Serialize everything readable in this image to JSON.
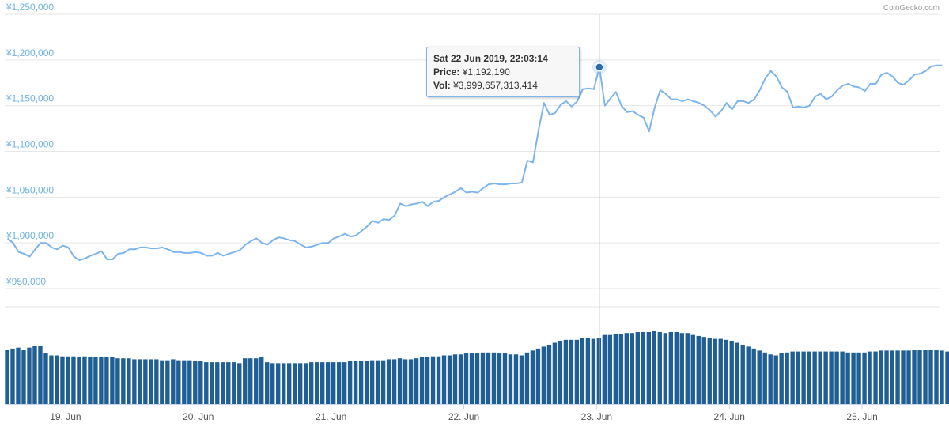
{
  "credit": "CoinGecko.com",
  "chart_data": {
    "type": "line",
    "xlabel": "",
    "ylabel": "",
    "currency": "¥",
    "ylim": [
      950000,
      1250000
    ],
    "y_ticks": [
      950000,
      1000000,
      1050000,
      1100000,
      1150000,
      1200000,
      1250000
    ],
    "y_tick_labels": [
      "¥950,000",
      "¥1,000,000",
      "¥1,050,000",
      "¥1,100,000",
      "¥1,150,000",
      "¥1,200,000",
      "¥1,250,000"
    ],
    "x_ticks": [
      "2019-06-19",
      "2019-06-20",
      "2019-06-21",
      "2019-06-22",
      "2019-06-23",
      "2019-06-24",
      "2019-06-25"
    ],
    "x_tick_labels": [
      "19. Jun",
      "20. Jun",
      "21. Jun",
      "22. Jun",
      "23. Jun",
      "24. Jun",
      "25. Jun"
    ],
    "x_range": [
      "2019-06-18T13:00",
      "2019-06-25T14:00"
    ],
    "interval_hours": 1,
    "colors": {
      "price_line": "#7cb5ec",
      "volume_bars": "#1f5f96",
      "grid": "#e6e6e6",
      "marker": "#2b6cb0",
      "crosshair": "#c0c0c0"
    },
    "grid": true,
    "legend": "none",
    "series": [
      {
        "name": "Price",
        "values": [
          1005000,
          1000000,
          990000,
          988000,
          985000,
          993000,
          1000000,
          1000000,
          995000,
          993000,
          997000,
          995000,
          985000,
          981000,
          983000,
          986000,
          988000,
          991000,
          982000,
          982000,
          988000,
          989000,
          993000,
          993000,
          995000,
          995000,
          994000,
          994000,
          995000,
          993000,
          990000,
          990000,
          989000,
          989000,
          990000,
          989000,
          986000,
          986000,
          989000,
          986000,
          988000,
          990000,
          992000,
          998000,
          1002000,
          1005000,
          1000000,
          998000,
          1003000,
          1006000,
          1005000,
          1003000,
          1002000,
          998000,
          995000,
          996000,
          998000,
          1000000,
          1000000,
          1005000,
          1007000,
          1010000,
          1007000,
          1008000,
          1013000,
          1018000,
          1024000,
          1022000,
          1026000,
          1025000,
          1030000,
          1043000,
          1040000,
          1042000,
          1043000,
          1045000,
          1040000,
          1045000,
          1046000,
          1050000,
          1053000,
          1056000,
          1060000,
          1055000,
          1056000,
          1055000,
          1060000,
          1064000,
          1065000,
          1064000,
          1064000,
          1065000,
          1065000,
          1066000,
          1090000,
          1088000,
          1123000,
          1153000,
          1140000,
          1142000,
          1151000,
          1155000,
          1149000,
          1155000,
          1168000,
          1169000,
          1168000,
          1192190,
          1150000,
          1158000,
          1165000,
          1150000,
          1143000,
          1144000,
          1140000,
          1137000,
          1122000,
          1148000,
          1167000,
          1163000,
          1157000,
          1157000,
          1155000,
          1157000,
          1155000,
          1153000,
          1150000,
          1145000,
          1138000,
          1144000,
          1153000,
          1146000,
          1155000,
          1155000,
          1153000,
          1157000,
          1167000,
          1180000,
          1188000,
          1182000,
          1170000,
          1165000,
          1148000,
          1149000,
          1148000,
          1150000,
          1160000,
          1163000,
          1157000,
          1160000,
          1167000,
          1172000,
          1174000,
          1171000,
          1170000,
          1166000,
          1174000,
          1174000,
          1184000,
          1186000,
          1182000,
          1175000,
          1173000,
          1178000,
          1184000,
          1185000,
          1188000,
          1193000,
          1194000,
          1194000
        ]
      },
      {
        "name": "Vol",
        "unit": "relative volume (0–100)",
        "values": [
          56,
          57,
          58,
          56,
          58,
          60,
          60,
          52,
          50,
          50,
          49,
          49,
          49,
          48,
          49,
          48,
          48,
          48,
          48,
          48,
          47,
          47,
          47,
          46,
          46,
          46,
          46,
          46,
          45,
          45,
          46,
          45,
          45,
          45,
          44,
          44,
          43,
          43,
          43,
          43,
          43,
          43,
          42,
          47,
          47,
          47,
          48,
          43,
          42,
          42,
          42,
          42,
          42,
          42,
          42,
          43,
          43,
          43,
          43,
          43,
          43,
          43,
          44,
          44,
          44,
          44,
          45,
          45,
          45,
          46,
          46,
          47,
          46,
          46,
          47,
          48,
          48,
          49,
          49,
          50,
          50,
          51,
          51,
          52,
          52,
          52,
          53,
          53,
          53,
          52,
          52,
          51,
          51,
          50,
          53,
          55,
          57,
          59,
          61,
          63,
          65,
          66,
          66,
          66,
          68,
          68,
          67,
          68,
          71,
          71,
          72,
          72,
          73,
          73,
          74,
          74,
          74,
          75,
          74,
          73,
          74,
          74,
          73,
          73,
          71,
          70,
          69,
          68,
          67,
          67,
          66,
          65,
          63,
          61,
          59,
          57,
          55,
          53,
          51,
          50,
          52,
          53,
          54,
          54,
          54,
          54,
          54,
          54,
          54,
          54,
          54,
          54,
          53,
          53,
          53,
          53,
          54,
          54,
          55,
          55,
          55,
          55,
          55,
          55,
          56,
          56,
          56,
          56,
          56,
          55,
          54,
          53,
          53,
          52,
          52,
          52
        ]
      }
    ],
    "highlight": {
      "index": 107,
      "date": "Sat 22 Jun 2019, 22:03:14",
      "price_label": "Price:",
      "price": "¥1,192,190",
      "vol_label": "Vol:",
      "vol": "¥3,999,657,313,414"
    }
  }
}
